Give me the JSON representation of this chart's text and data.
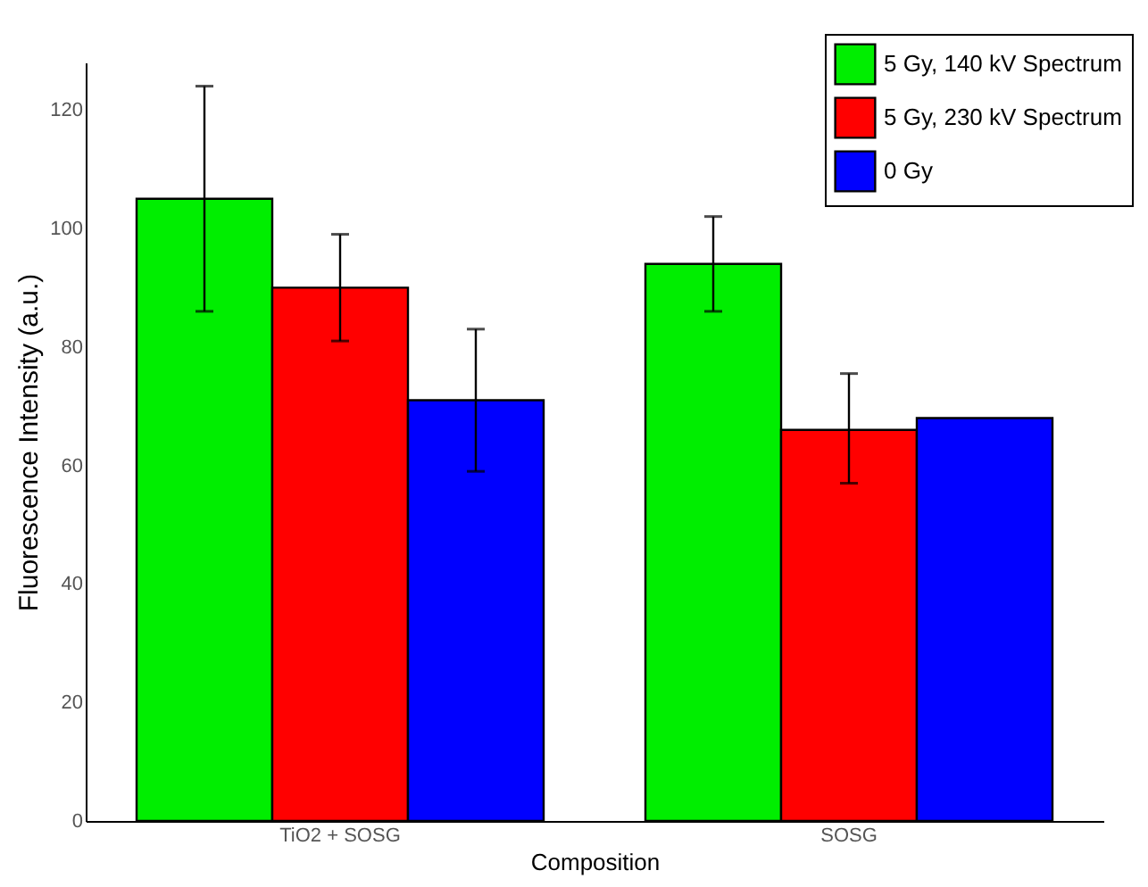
{
  "chart_data": {
    "type": "bar",
    "xlabel": "Composition",
    "ylabel": "Fluorescence Intensity (a.u.)",
    "categories": [
      "TiO2 + SOSG",
      "SOSG"
    ],
    "series": [
      {
        "name": "5 Gy, 140 kV Spectrum",
        "color": "#00ee00",
        "values": [
          105,
          94
        ],
        "errors": [
          [
            86,
            124
          ],
          [
            86,
            102
          ]
        ]
      },
      {
        "name": "5 Gy, 230 kV Spectrum",
        "color": "#ff0000",
        "values": [
          90,
          66
        ],
        "errors": [
          [
            81,
            99
          ],
          [
            57,
            75.5
          ]
        ]
      },
      {
        "name": "0 Gy",
        "color": "#0000ff",
        "values": [
          71,
          68
        ],
        "errors": [
          [
            59,
            83
          ],
          null
        ]
      }
    ],
    "ylim": [
      0,
      128
    ],
    "yticks": [
      0,
      20,
      40,
      60,
      80,
      100,
      120
    ],
    "grid": false,
    "legend": "top right"
  }
}
